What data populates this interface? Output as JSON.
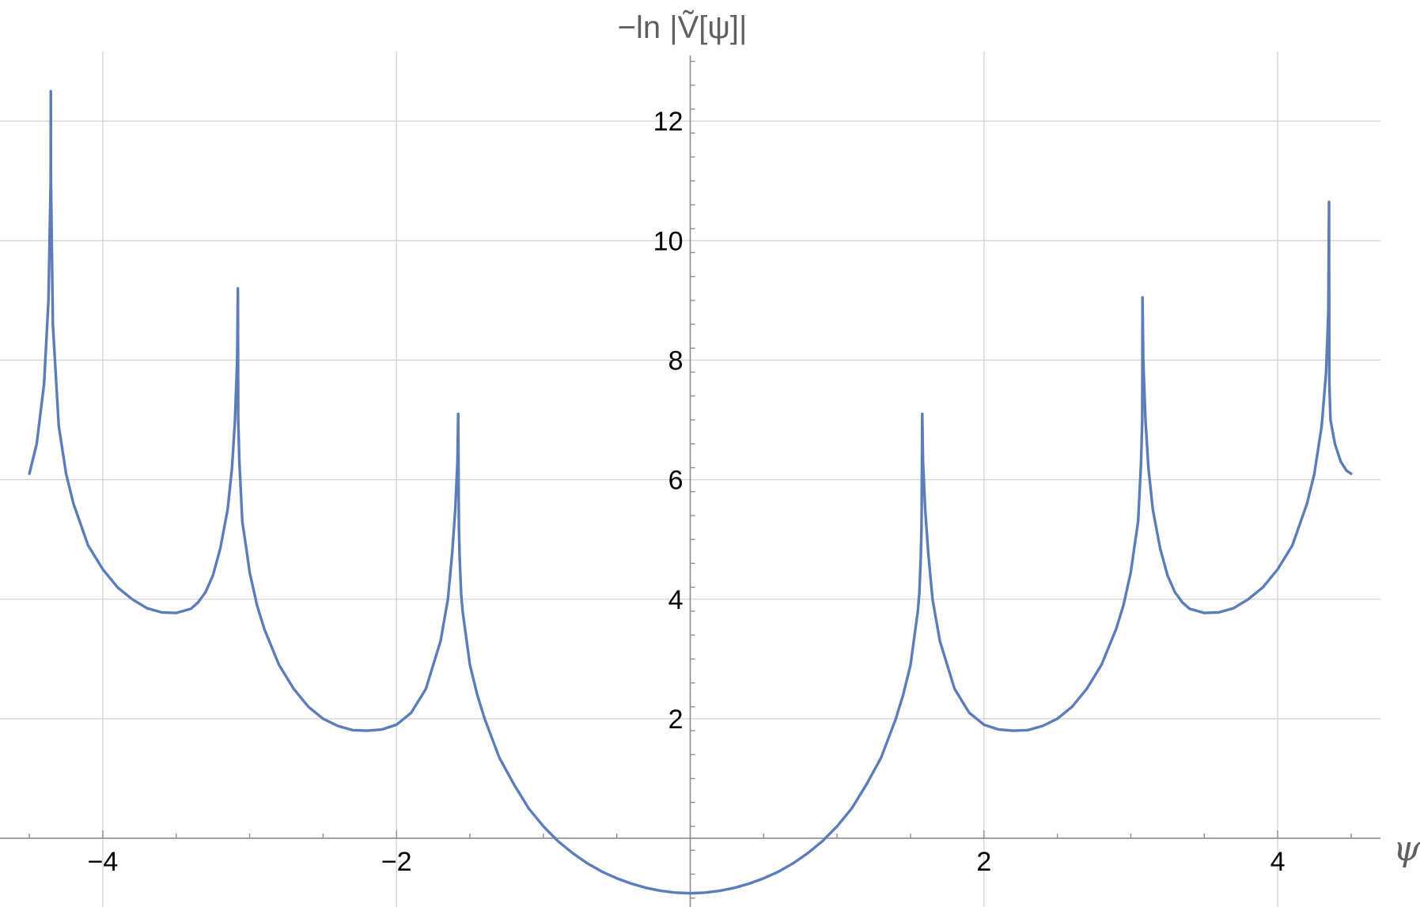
{
  "chart_data": {
    "type": "line",
    "title": "",
    "xlabel": "ψ",
    "ylabel": "−ln |Ṽ[ψ]|",
    "xlim": [
      -4.7,
      4.7
    ],
    "ylim": [
      -1.15,
      13.1
    ],
    "x_ticks": [
      -4,
      -2,
      2,
      4
    ],
    "y_ticks": [
      2,
      4,
      6,
      8,
      10,
      12
    ],
    "grid": true,
    "line_color": "#5b7db8",
    "series": [
      {
        "name": "",
        "x": [
          -4.5,
          -4.45,
          -4.4,
          -4.37,
          -4.355,
          -4.354,
          -4.353,
          -4.34,
          -4.3,
          -4.25,
          -4.2,
          -4.1,
          -4.0,
          -3.9,
          -3.8,
          -3.7,
          -3.6,
          -3.5,
          -3.4,
          -3.35,
          -3.3,
          -3.25,
          -3.2,
          -3.15,
          -3.12,
          -3.1,
          -3.085,
          -3.08,
          -3.079,
          -3.078,
          -3.07,
          -3.05,
          -3.02,
          -3.0,
          -2.95,
          -2.9,
          -2.8,
          -2.7,
          -2.6,
          -2.5,
          -2.4,
          -2.3,
          -2.2,
          -2.1,
          -2.0,
          -1.9,
          -1.8,
          -1.7,
          -1.65,
          -1.62,
          -1.6,
          -1.585,
          -1.58,
          -1.578,
          -1.577,
          -1.575,
          -1.57,
          -1.56,
          -1.55,
          -1.5,
          -1.45,
          -1.4,
          -1.3,
          -1.2,
          -1.1,
          -1.0,
          -0.9,
          -0.8,
          -0.7,
          -0.6,
          -0.5,
          -0.4,
          -0.3,
          -0.2,
          -0.1,
          0.0,
          0.1,
          0.2,
          0.3,
          0.4,
          0.5,
          0.6,
          0.7,
          0.8,
          0.9,
          1.0,
          1.1,
          1.2,
          1.3,
          1.4,
          1.45,
          1.5,
          1.55,
          1.56,
          1.57,
          1.575,
          1.577,
          1.578,
          1.58,
          1.585,
          1.6,
          1.62,
          1.65,
          1.7,
          1.8,
          1.9,
          2.0,
          2.1,
          2.2,
          2.3,
          2.4,
          2.5,
          2.6,
          2.7,
          2.8,
          2.9,
          2.95,
          3.0,
          3.02,
          3.05,
          3.07,
          3.078,
          3.079,
          3.08,
          3.085,
          3.1,
          3.12,
          3.15,
          3.2,
          3.25,
          3.3,
          3.35,
          3.4,
          3.5,
          3.6,
          3.7,
          3.8,
          3.9,
          4.0,
          4.1,
          4.2,
          4.25,
          4.3,
          4.33,
          4.345,
          4.35,
          4.351,
          4.352,
          4.36,
          4.39,
          4.43,
          4.47,
          4.5
        ],
        "y": [
          6.1,
          6.6,
          7.6,
          9.0,
          11.0,
          12.5,
          11.0,
          8.6,
          6.9,
          6.1,
          5.6,
          4.9,
          4.5,
          4.2,
          4.0,
          3.85,
          3.78,
          3.77,
          3.84,
          3.95,
          4.12,
          4.4,
          4.85,
          5.5,
          6.2,
          7.0,
          8.0,
          9.2,
          8.0,
          7.0,
          6.3,
          5.3,
          4.8,
          4.45,
          3.9,
          3.5,
          2.9,
          2.5,
          2.2,
          2.0,
          1.88,
          1.81,
          1.8,
          1.82,
          1.9,
          2.1,
          2.5,
          3.3,
          4.0,
          4.8,
          5.5,
          6.3,
          7.1,
          6.3,
          5.8,
          5.2,
          4.7,
          4.1,
          3.8,
          2.9,
          2.4,
          2.0,
          1.35,
          0.9,
          0.5,
          0.2,
          -0.05,
          -0.25,
          -0.42,
          -0.56,
          -0.67,
          -0.76,
          -0.83,
          -0.88,
          -0.91,
          -0.92,
          -0.91,
          -0.88,
          -0.83,
          -0.76,
          -0.67,
          -0.56,
          -0.42,
          -0.25,
          -0.05,
          0.2,
          0.5,
          0.9,
          1.35,
          2.0,
          2.4,
          2.9,
          3.8,
          4.1,
          4.7,
          5.2,
          5.8,
          6.3,
          7.1,
          6.3,
          5.5,
          4.8,
          4.0,
          3.3,
          2.5,
          2.1,
          1.9,
          1.82,
          1.8,
          1.81,
          1.88,
          2.0,
          2.2,
          2.5,
          2.9,
          3.5,
          3.9,
          4.45,
          4.8,
          5.3,
          6.3,
          7.0,
          8.0,
          9.05,
          8.0,
          7.0,
          6.2,
          5.5,
          4.85,
          4.4,
          4.12,
          3.95,
          3.84,
          3.77,
          3.78,
          3.85,
          4.0,
          4.2,
          4.5,
          4.9,
          5.6,
          6.1,
          6.9,
          7.8,
          8.8,
          10.65,
          8.8,
          7.6,
          7.0,
          6.6,
          6.3,
          6.15,
          6.1
        ]
      }
    ]
  }
}
